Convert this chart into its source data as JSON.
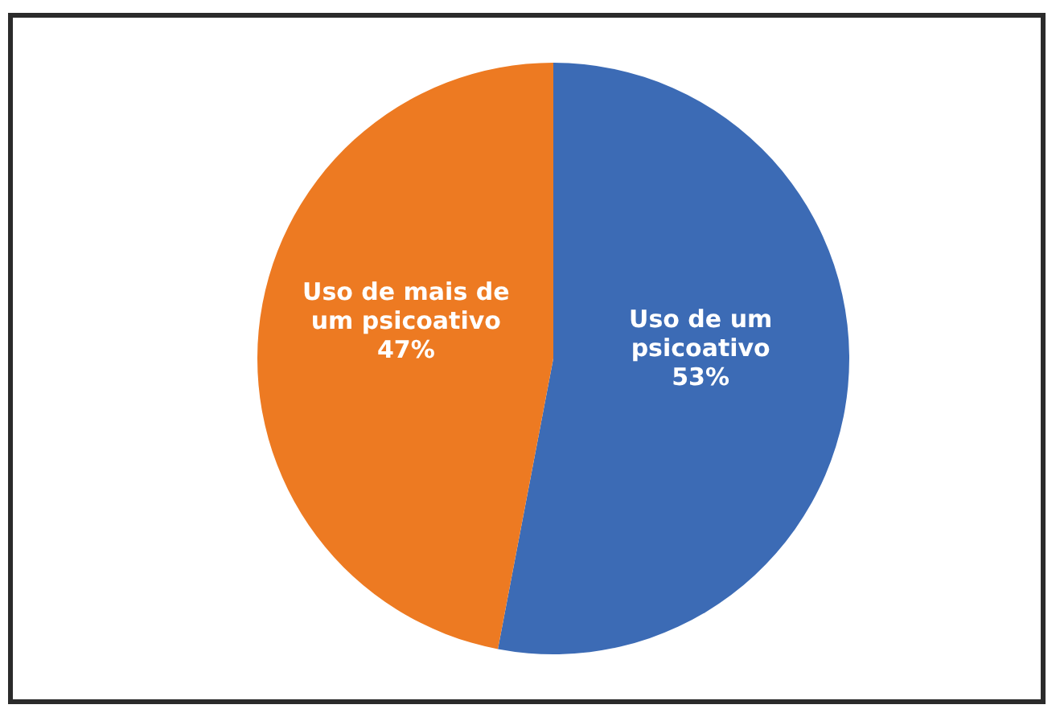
{
  "chart_data": {
    "type": "pie",
    "categories": [
      "Uso de um psicoativo",
      "Uso de mais de um psicoativo"
    ],
    "values": [
      53,
      47
    ],
    "colors": [
      "#3c6bb5",
      "#ed7a22"
    ],
    "value_labels": [
      "53%",
      "47%"
    ],
    "legend": false
  }
}
